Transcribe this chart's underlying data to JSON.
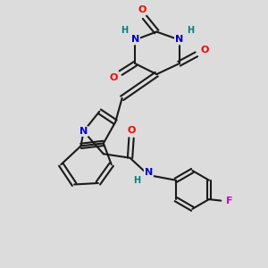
{
  "bg_color": "#dcdcdc",
  "bond_color": "#1a1a1a",
  "atom_colors": {
    "O": "#ff0000",
    "N": "#0000cc",
    "H": "#008080",
    "F": "#cc00cc",
    "C": "#1a1a1a"
  },
  "figsize": [
    3.0,
    3.0
  ],
  "dpi": 100
}
